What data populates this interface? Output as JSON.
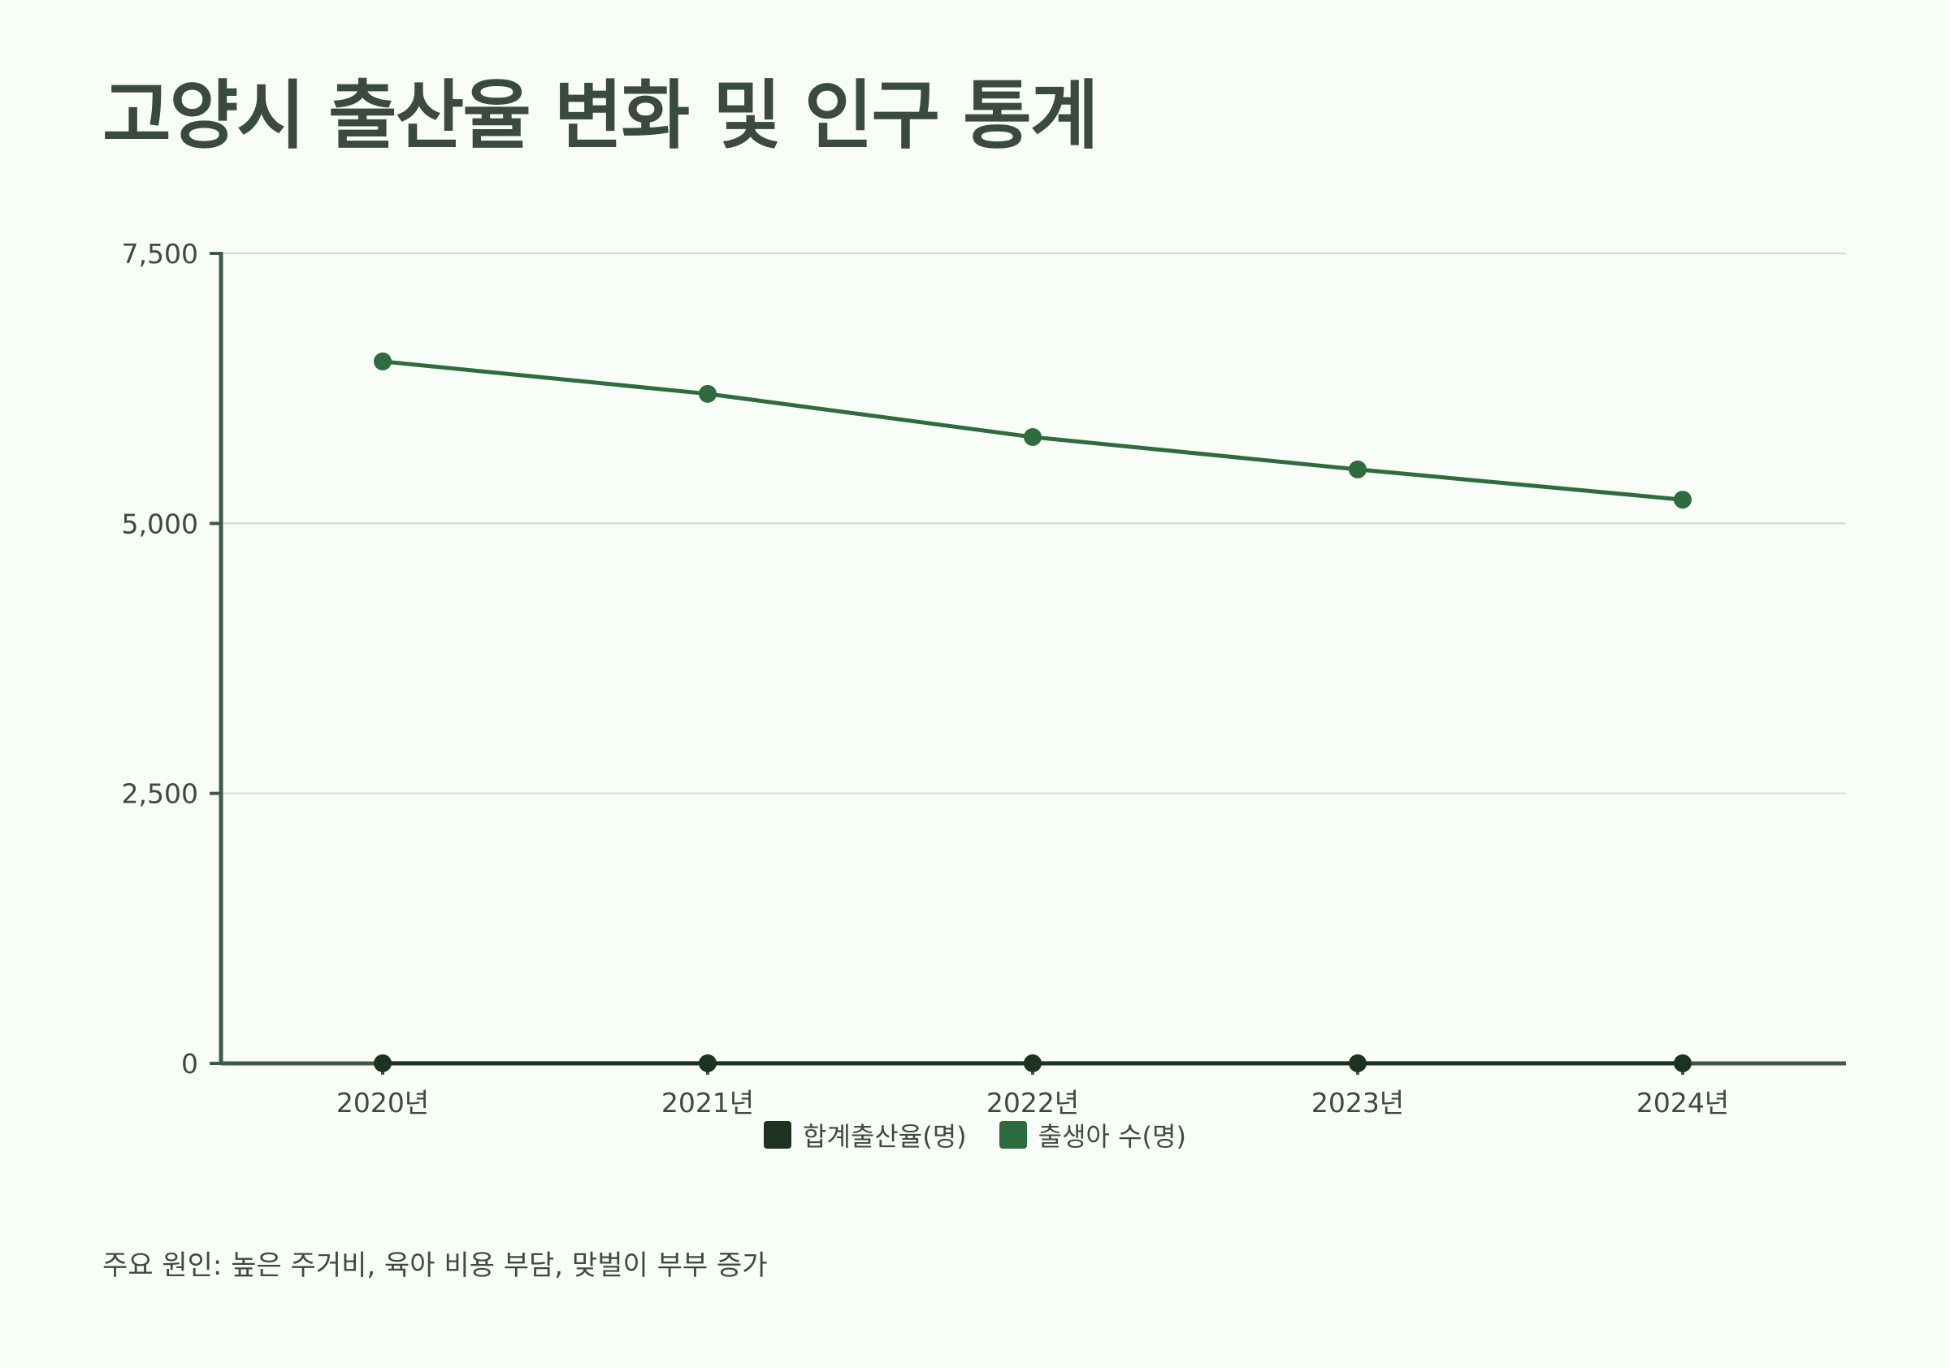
{
  "title": "고양시 출산율 변화 및 인구 통계",
  "footnote": "주요 원인: 높은 주거비, 육아 비용 부담, 맞벌이 부부 증가",
  "colors": {
    "background": "#f8fdf8",
    "axis": "#3d5a45",
    "grid": "#d4d9d5",
    "series_fertility": "#1b3320",
    "series_births": "#2e6b3f"
  },
  "chart_data": {
    "type": "line",
    "categories": [
      "2020년",
      "2021년",
      "2022년",
      "2023년",
      "2024년"
    ],
    "series": [
      {
        "name": "합계출산율(명)",
        "values": [
          0.9,
          0.85,
          0.8,
          0.75,
          0.7
        ],
        "color": "#1b3320"
      },
      {
        "name": "출생아 수(명)",
        "values": [
          6500,
          6200,
          5800,
          5500,
          5220
        ],
        "color": "#2e6b3f"
      }
    ],
    "y_ticks": [
      {
        "value": 0,
        "label": "0"
      },
      {
        "value": 2500,
        "label": "2,500"
      },
      {
        "value": 5000,
        "label": "5,000"
      },
      {
        "value": 7500,
        "label": "7,500"
      }
    ],
    "ylim": [
      0,
      7500
    ],
    "grid": true,
    "legend_position": "bottom-center"
  }
}
